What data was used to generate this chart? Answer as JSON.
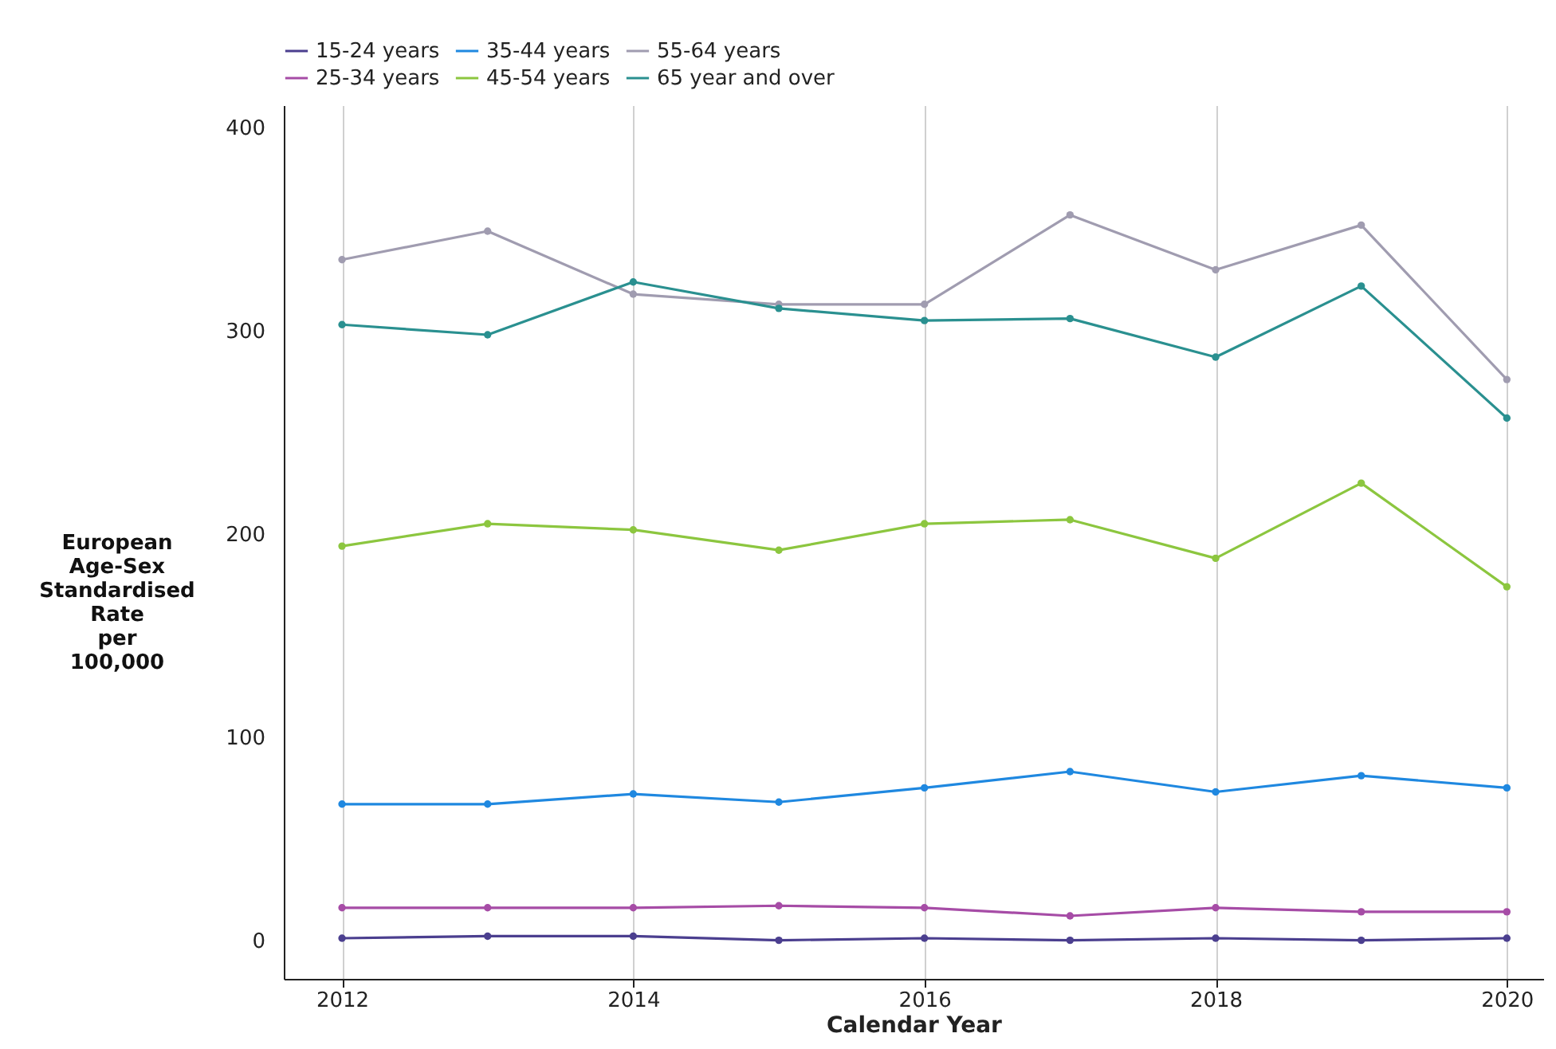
{
  "chart_data": {
    "type": "line",
    "xlabel": "Calendar Year",
    "ylabel": "European Age-Sex Standardised Rate per 100,000",
    "x": [
      2012,
      2013,
      2014,
      2015,
      2016,
      2017,
      2018,
      2019,
      2020
    ],
    "series": [
      {
        "name": "15-24 years",
        "color": "#4b3f8f",
        "values": [
          1,
          2,
          2,
          0,
          1,
          0,
          1,
          0,
          1
        ]
      },
      {
        "name": "25-34 years",
        "color": "#a64ca6",
        "values": [
          16,
          16,
          16,
          17,
          16,
          12,
          16,
          14,
          14
        ]
      },
      {
        "name": "35-44 years",
        "color": "#1f88e0",
        "values": [
          67,
          67,
          72,
          68,
          75,
          83,
          73,
          81,
          75
        ]
      },
      {
        "name": "45-54 years",
        "color": "#8cc63f",
        "values": [
          194,
          205,
          202,
          192,
          205,
          207,
          188,
          225,
          174
        ]
      },
      {
        "name": "55-64 years",
        "color": "#a09cb0",
        "values": [
          335,
          349,
          318,
          313,
          313,
          357,
          330,
          352,
          276
        ]
      },
      {
        "name": "65 year and over",
        "color": "#2a9090",
        "values": [
          303,
          298,
          324,
          311,
          305,
          306,
          287,
          322,
          257
        ]
      }
    ],
    "xlim": [
      2011.6,
      2020.25
    ],
    "xticks": [
      2012,
      2014,
      2016,
      2018,
      2020
    ],
    "ylim": [
      -19,
      411
    ],
    "yticks": [
      0,
      100,
      200,
      300,
      400
    ],
    "grid": "x",
    "legend": "top",
    "marker": "circle",
    "line_style": "solid"
  }
}
